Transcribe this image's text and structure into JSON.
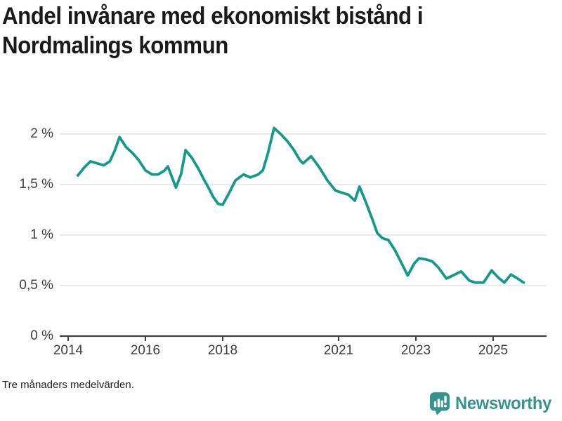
{
  "header": {
    "title_lines": [
      "Andel invånare med ekonomiskt bistånd i",
      "Nordmalings kommun"
    ]
  },
  "footer": {
    "note": "Tre månaders medelvärden.",
    "brand": "Newsworthy"
  },
  "colors": {
    "line": "#14998c",
    "brand_teal": "#35948d",
    "gridline": "#e3e3e3",
    "axis": "#3f3f3f"
  },
  "chart_data": {
    "type": "line",
    "title": "Andel invånare med ekonomiskt bistånd i Nordmalings kommun",
    "subtitle": "Tre månaders medelvärden.",
    "unit": "%",
    "legend_position": "none",
    "grid": true,
    "x_axis": {
      "range": [
        2013.8,
        2026.4
      ],
      "ticks": [
        {
          "x": 2014,
          "label": "2014"
        },
        {
          "x": 2016,
          "label": "2016"
        },
        {
          "x": 2018,
          "label": "2018"
        },
        {
          "x": 2021,
          "label": "2021"
        },
        {
          "x": 2023,
          "label": "2023"
        },
        {
          "x": 2025,
          "label": "2025"
        }
      ]
    },
    "y_axis": {
      "range": [
        0,
        2.15
      ],
      "ticks": [
        {
          "value": 2,
          "label": "2 %"
        },
        {
          "value": 1.5,
          "label": "1,5 %"
        },
        {
          "value": 1,
          "label": "1 %"
        },
        {
          "value": 0.5,
          "label": "0,5 %"
        },
        {
          "value": 0,
          "label": "0 %"
        }
      ]
    },
    "series": [
      {
        "name": "Andel invånare med ekonomiskt bistånd",
        "color": "#14998c",
        "points": [
          [
            2014.25,
            1.59
          ],
          [
            2014.42,
            1.67
          ],
          [
            2014.58,
            1.73
          ],
          [
            2014.75,
            1.71
          ],
          [
            2014.92,
            1.69
          ],
          [
            2015.08,
            1.73
          ],
          [
            2015.21,
            1.84
          ],
          [
            2015.33,
            1.97
          ],
          [
            2015.5,
            1.87
          ],
          [
            2015.67,
            1.81
          ],
          [
            2015.83,
            1.74
          ],
          [
            2016.0,
            1.64
          ],
          [
            2016.17,
            1.6
          ],
          [
            2016.33,
            1.6
          ],
          [
            2016.5,
            1.64
          ],
          [
            2016.58,
            1.68
          ],
          [
            2016.79,
            1.47
          ],
          [
            2016.92,
            1.6
          ],
          [
            2017.04,
            1.84
          ],
          [
            2017.21,
            1.76
          ],
          [
            2017.38,
            1.65
          ],
          [
            2017.5,
            1.56
          ],
          [
            2017.63,
            1.47
          ],
          [
            2017.75,
            1.38
          ],
          [
            2017.88,
            1.31
          ],
          [
            2018.0,
            1.3
          ],
          [
            2018.17,
            1.42
          ],
          [
            2018.33,
            1.54
          ],
          [
            2018.54,
            1.6
          ],
          [
            2018.71,
            1.57
          ],
          [
            2018.92,
            1.6
          ],
          [
            2019.04,
            1.64
          ],
          [
            2019.17,
            1.81
          ],
          [
            2019.33,
            2.06
          ],
          [
            2019.5,
            2.0
          ],
          [
            2019.67,
            1.93
          ],
          [
            2019.83,
            1.85
          ],
          [
            2020.0,
            1.74
          ],
          [
            2020.08,
            1.71
          ],
          [
            2020.29,
            1.78
          ],
          [
            2020.5,
            1.67
          ],
          [
            2020.71,
            1.54
          ],
          [
            2020.92,
            1.44
          ],
          [
            2021.08,
            1.42
          ],
          [
            2021.25,
            1.4
          ],
          [
            2021.42,
            1.34
          ],
          [
            2021.54,
            1.48
          ],
          [
            2021.71,
            1.32
          ],
          [
            2021.88,
            1.15
          ],
          [
            2022.0,
            1.02
          ],
          [
            2022.13,
            0.97
          ],
          [
            2022.29,
            0.95
          ],
          [
            2022.46,
            0.85
          ],
          [
            2022.63,
            0.72
          ],
          [
            2022.79,
            0.6
          ],
          [
            2022.96,
            0.72
          ],
          [
            2023.08,
            0.77
          ],
          [
            2023.25,
            0.76
          ],
          [
            2023.42,
            0.74
          ],
          [
            2023.58,
            0.68
          ],
          [
            2023.79,
            0.57
          ],
          [
            2023.96,
            0.6
          ],
          [
            2024.17,
            0.64
          ],
          [
            2024.38,
            0.55
          ],
          [
            2024.54,
            0.53
          ],
          [
            2024.75,
            0.53
          ],
          [
            2024.96,
            0.65
          ],
          [
            2025.13,
            0.58
          ],
          [
            2025.29,
            0.53
          ],
          [
            2025.46,
            0.61
          ],
          [
            2025.63,
            0.57
          ],
          [
            2025.79,
            0.53
          ]
        ]
      }
    ]
  }
}
